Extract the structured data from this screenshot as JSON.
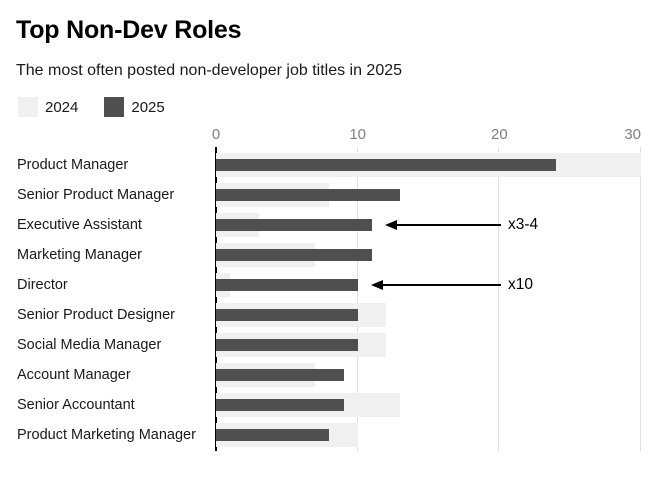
{
  "header": {
    "title": "Top Non-Dev Roles",
    "subtitle": "The most often posted non-developer job titles in 2025"
  },
  "legend": [
    {
      "label": "2024",
      "color": "#f0f0f0"
    },
    {
      "label": "2025",
      "color": "#4f4f4f"
    }
  ],
  "chart_data": {
    "type": "bar",
    "orientation": "horizontal",
    "title": "Top Non-Dev Roles",
    "subtitle": "The most often posted non-developer job titles in 2025",
    "xlim": [
      0,
      30
    ],
    "x_ticks": [
      0,
      10,
      20,
      30
    ],
    "grid": "vertical",
    "legend_position": "top-left",
    "categories": [
      "Product Manager",
      "Senior Product Manager",
      "Executive Assistant",
      "Marketing Manager",
      "Director",
      "Senior Product Designer",
      "Social Media Manager",
      "Account Manager",
      "Senior Accountant",
      "Product Marketing Manager"
    ],
    "series": [
      {
        "name": "2024",
        "color": "#f0f0f0",
        "values": [
          30,
          8,
          3,
          7,
          1,
          12,
          12,
          7,
          13,
          10
        ]
      },
      {
        "name": "2025",
        "color": "#4f4f4f",
        "values": [
          24,
          13,
          11,
          11,
          10,
          10,
          10,
          9,
          9,
          8
        ]
      }
    ],
    "annotations": [
      {
        "target": "Executive Assistant",
        "text": "x3-4"
      },
      {
        "target": "Director",
        "text": "x10"
      }
    ]
  }
}
